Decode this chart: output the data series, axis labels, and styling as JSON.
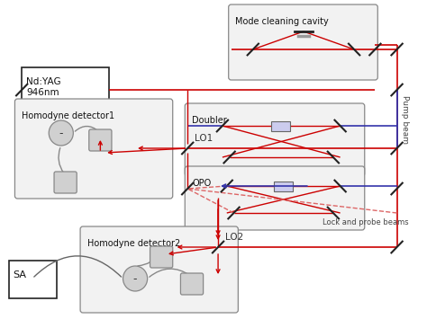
{
  "background": "#ffffff",
  "red": "#cc0000",
  "blue": "#3333aa",
  "pink": "#dd6666",
  "black": "#222222",
  "gray_fill": "#d0d0d0",
  "gray_edge": "#888888",
  "box_fill": "#f2f2f2",
  "pump_beam_label": "Pump beam",
  "lock_probe_label": "Lock and probe beams",
  "lo1_label": "LO1",
  "lo2_label": "LO2"
}
